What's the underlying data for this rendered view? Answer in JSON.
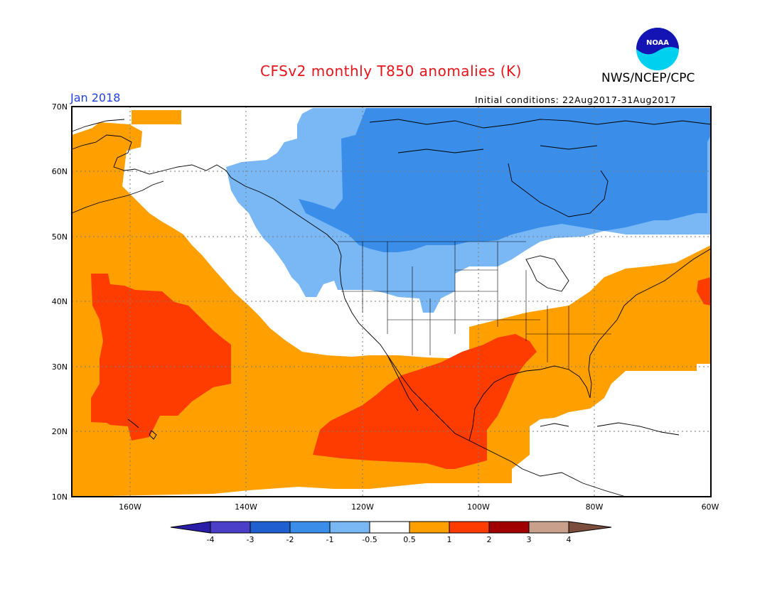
{
  "title": "CFSv2 monthly T850 anomalies (K)",
  "agency": "NWS/NCEP/CPC",
  "logo_text": "NOAA",
  "period": "Jan 2018",
  "initial_conditions": "Initial conditions: 22Aug2017-31Aug2017",
  "map": {
    "projection": "equirectangular",
    "lon_range": [
      -170,
      -60
    ],
    "lat_range": [
      10,
      70
    ],
    "lat_ticks": [
      "10N",
      "20N",
      "30N",
      "40N",
      "50N",
      "60N",
      "70N"
    ],
    "lon_ticks": [
      "160W",
      "140W",
      "120W",
      "100W",
      "80W",
      "60W"
    ],
    "grid": "dotted"
  },
  "colorbar": {
    "labels": [
      "-4",
      "-3",
      "-2",
      "-1",
      "-0.5",
      "0.5",
      "1",
      "2",
      "3",
      "4"
    ],
    "colors": [
      "#2a1ea8",
      "#4b3ec8",
      "#1f5fd0",
      "#3a8eea",
      "#7ab8f5",
      "#ffffff",
      "#ffa000",
      "#ff3c00",
      "#a00000",
      "#c8a08c",
      "#7c4c3c"
    ]
  },
  "regions": [
    {
      "name": "Canada / northern US negative anomaly (-2 to -1)",
      "category": "-2_-1",
      "color": "#3a8eea"
    },
    {
      "name": "Western Canada negative anomaly (-1 to -0.5)",
      "category": "-1_-0.5",
      "color": "#7ab8f5"
    },
    {
      "name": "North Pacific positive anomaly (0.5 to 1)",
      "category": "0.5_1",
      "color": "#ffa000"
    },
    {
      "name": "Subtropical Pacific positive anomaly (1 to 2)",
      "category": "1_2",
      "color": "#ff3c00"
    },
    {
      "name": "Mexico / Gulf positive anomaly (1 to 2)",
      "category": "1_2",
      "color": "#ff3c00"
    },
    {
      "name": "Eastern US positive anomaly (0.5 to 1)",
      "category": "0.5_1",
      "color": "#ffa000"
    }
  ]
}
